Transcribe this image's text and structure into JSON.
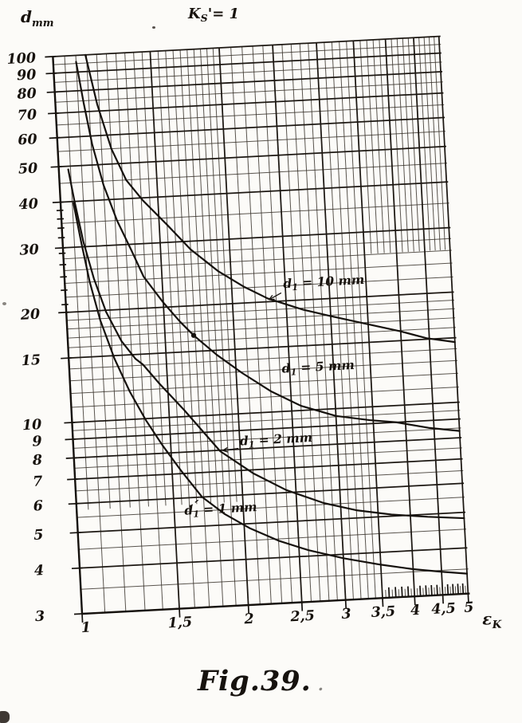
{
  "figure": {
    "y_axis_unit": {
      "base": "d",
      "sub": "mm"
    },
    "x_axis_unit": {
      "base": "ε",
      "sub": "K"
    },
    "condition": {
      "base": "K",
      "sub": "S",
      "rest": "'= 1"
    },
    "caption": "Fig.39.",
    "caption_trail": ".",
    "ink_color": "#15110d",
    "paper_color": "#fcfbf8"
  },
  "chart_data": {
    "type": "line",
    "title": "KS = 1",
    "xlabel": "εK",
    "ylabel": "d mm",
    "x_scale": "log",
    "y_scale": "log",
    "xlim": [
      1,
      5
    ],
    "ylim": [
      3,
      100
    ],
    "grid": "fine log-log grid, both axes",
    "legend_position": "inline curve labels",
    "x_ticks": [
      {
        "value": 1,
        "label": "1"
      },
      {
        "value": 1.5,
        "label": "1,5"
      },
      {
        "value": 2,
        "label": "2"
      },
      {
        "value": 2.5,
        "label": "2,5"
      },
      {
        "value": 3,
        "label": "3"
      },
      {
        "value": 3.5,
        "label": "3,5"
      },
      {
        "value": 4,
        "label": "4"
      },
      {
        "value": 4.5,
        "label": "4,5"
      },
      {
        "value": 5,
        "label": "5"
      }
    ],
    "y_ticks": [
      {
        "value": 100,
        "label": "100"
      },
      {
        "value": 90,
        "label": "90"
      },
      {
        "value": 80,
        "label": "80"
      },
      {
        "value": 70,
        "label": "70"
      },
      {
        "value": 60,
        "label": "60"
      },
      {
        "value": 50,
        "label": "50"
      },
      {
        "value": 40,
        "label": "40"
      },
      {
        "value": 30,
        "label": "30"
      },
      {
        "value": 20,
        "label": "20"
      },
      {
        "value": 15,
        "label": "15"
      },
      {
        "value": 10,
        "label": "10"
      },
      {
        "value": 9,
        "label": "9"
      },
      {
        "value": 8,
        "label": "8"
      },
      {
        "value": 7,
        "label": "7"
      },
      {
        "value": 6,
        "label": "6"
      },
      {
        "value": 5,
        "label": "5"
      },
      {
        "value": 4,
        "label": "4"
      },
      {
        "value": 3,
        "label": "3"
      }
    ],
    "y_minor_gridlines": [
      95,
      85,
      75,
      65,
      55,
      45,
      35,
      28,
      26,
      24,
      22,
      19,
      18,
      17,
      16,
      14,
      13,
      12,
      11,
      9.5,
      8.5,
      7.5,
      6.5,
      5.5,
      4.5,
      3.5
    ],
    "y_axis_stub_ticks": [
      29,
      27,
      25,
      23,
      21,
      32,
      34,
      36,
      38
    ],
    "x_minor_step": 0.1,
    "marker_point": {
      "x": 1.69,
      "y": 16.6
    },
    "series": [
      {
        "name": "d1 = 10 mm",
        "label": {
          "base": "d",
          "sub": "1",
          "rest": " = 10 mm"
        },
        "label_pos": {
          "x": 2.48,
          "y": 21.7
        },
        "leader": {
          "x1": 2.455,
          "y1": 21.05,
          "x2": 2.33,
          "y2": 20.25,
          "dashed": false,
          "arrow": true
        },
        "points": [
          [
            1.145,
            100
          ],
          [
            1.19,
            73
          ],
          [
            1.25,
            55
          ],
          [
            1.32,
            45
          ],
          [
            1.41,
            39.3
          ],
          [
            1.55,
            33.5
          ],
          [
            1.7,
            28.5
          ],
          [
            1.9,
            24.6
          ],
          [
            2.1,
            22.2
          ],
          [
            2.32,
            20.4
          ],
          [
            2.68,
            18.8
          ],
          [
            3,
            17.9
          ],
          [
            3.5,
            16.8
          ],
          [
            4,
            15.9
          ],
          [
            4.45,
            15.1
          ],
          [
            5,
            14.6
          ]
        ]
      },
      {
        "name": "d1 = 5 mm",
        "label": {
          "base": "d",
          "sub": "1",
          "rest": " = 5 mm"
        },
        "label_pos": {
          "x": 2.42,
          "y": 12.75
        },
        "leader": null,
        "points": [
          [
            1.1,
            96
          ],
          [
            1.125,
            74
          ],
          [
            1.155,
            57
          ],
          [
            1.2,
            44
          ],
          [
            1.26,
            35
          ],
          [
            1.33,
            28.8
          ],
          [
            1.39,
            24.4
          ],
          [
            1.5,
            20.6
          ],
          [
            1.6,
            18.2
          ],
          [
            1.69,
            16.6
          ],
          [
            1.85,
            14.6
          ],
          [
            2.05,
            12.9
          ],
          [
            2.3,
            11.4
          ],
          [
            2.6,
            10.3
          ],
          [
            3,
            9.55
          ],
          [
            3.45,
            9.2
          ],
          [
            3.85,
            9.0
          ],
          [
            4.4,
            8.6
          ],
          [
            5,
            8.35
          ]
        ]
      },
      {
        "name": "d1 = 2 mm",
        "label": {
          "base": "d",
          "sub": "1",
          "rest": " = 2 mm"
        },
        "label_pos": {
          "x": 2.0,
          "y": 8.2
        },
        "leader": {
          "x1": 1.985,
          "y1": 8.05,
          "x2": 1.86,
          "y2": 7.98,
          "dashed": false,
          "arrow": true
        },
        "points": [
          [
            1.04,
            49
          ],
          [
            1.06,
            40
          ],
          [
            1.09,
            31
          ],
          [
            1.13,
            24.5
          ],
          [
            1.18,
            19.8
          ],
          [
            1.25,
            16.4
          ],
          [
            1.32,
            14.6
          ],
          [
            1.36,
            14.05
          ],
          [
            1.45,
            12.4
          ],
          [
            1.6,
            10.4
          ],
          [
            1.84,
            7.95
          ],
          [
            2.1,
            6.85
          ],
          [
            2.4,
            6.1
          ],
          [
            2.8,
            5.55
          ],
          [
            3.2,
            5.25
          ],
          [
            3.7,
            5.05
          ],
          [
            4.3,
            4.92
          ],
          [
            5,
            4.82
          ]
        ]
      },
      {
        "name": "d1 = 1 mm",
        "label": {
          "base": "d",
          "sub": "1",
          "rest": " = 1 mm"
        },
        "label_pos": {
          "x": 1.565,
          "y": 5.4
        },
        "leader": {
          "x1": 1.6,
          "y1": 5.66,
          "x2": 1.688,
          "y2": 6.0,
          "dashed": true,
          "arrow": false
        },
        "points": [
          [
            1.055,
            39.6
          ],
          [
            1.08,
            31
          ],
          [
            1.11,
            24
          ],
          [
            1.15,
            18.8
          ],
          [
            1.21,
            14.7
          ],
          [
            1.28,
            11.9
          ],
          [
            1.36,
            9.9
          ],
          [
            1.45,
            8.4
          ],
          [
            1.56,
            7.1
          ],
          [
            1.69,
            6.0
          ],
          [
            1.85,
            5.35
          ],
          [
            2.05,
            4.85
          ],
          [
            2.3,
            4.45
          ],
          [
            2.6,
            4.15
          ],
          [
            3,
            3.9
          ],
          [
            3.5,
            3.7
          ],
          [
            4,
            3.56
          ],
          [
            4.5,
            3.47
          ],
          [
            5,
            3.4
          ]
        ]
      }
    ]
  }
}
